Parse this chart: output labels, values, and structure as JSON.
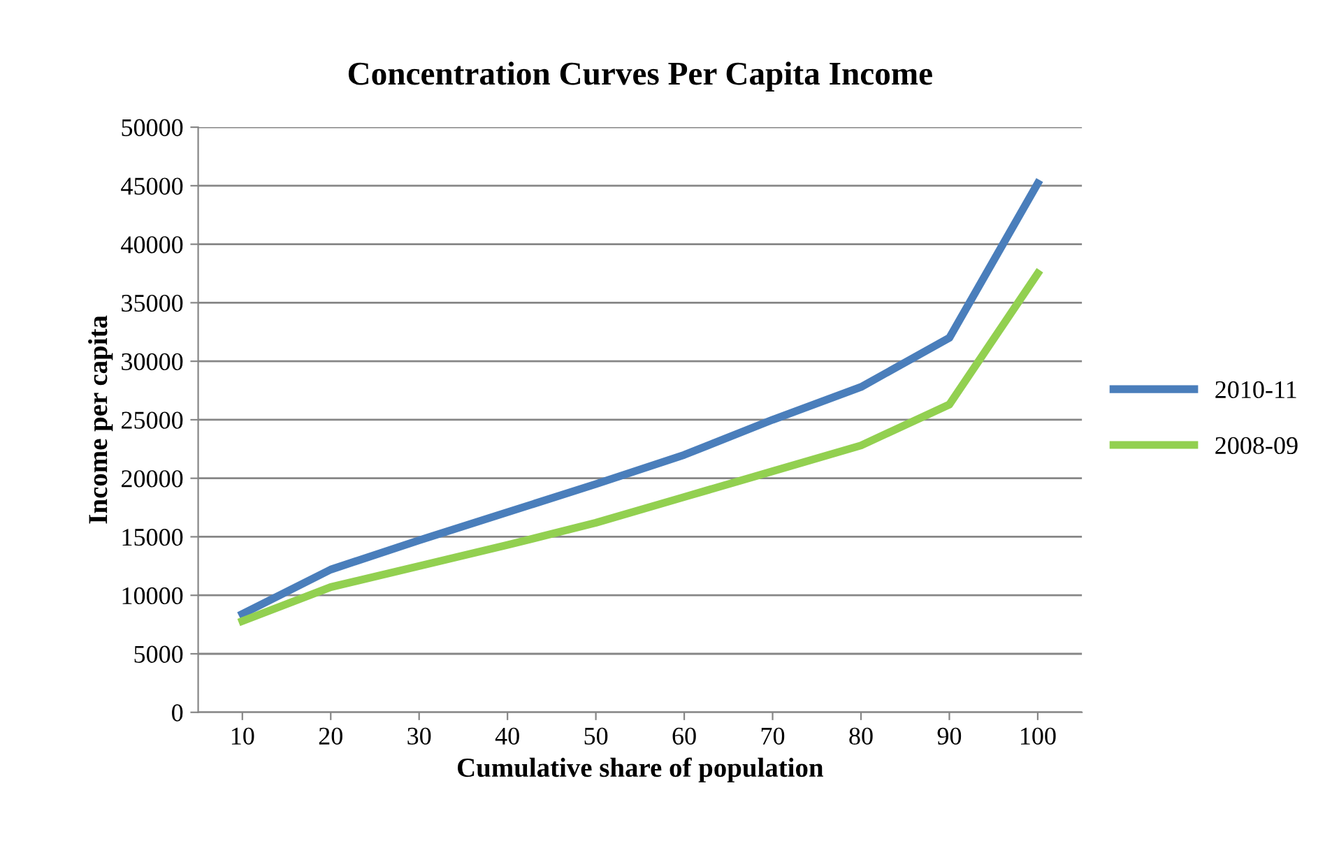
{
  "chart_data": {
    "type": "line",
    "title": "Concentration Curves Per Capita Income",
    "xlabel": "Cumulative share of population",
    "ylabel": "Income per capita",
    "categories": [
      "10",
      "20",
      "30",
      "40",
      "50",
      "60",
      "70",
      "80",
      "90",
      "100"
    ],
    "series": [
      {
        "name": "2010-11",
        "color": "#4a7ebb",
        "values": [
          8400,
          12200,
          14700,
          17100,
          19500,
          22000,
          25000,
          27800,
          32000,
          45200
        ]
      },
      {
        "name": "2008-09",
        "color": "#92d050",
        "values": [
          7800,
          10700,
          12500,
          14300,
          16200,
          18400,
          20600,
          22800,
          26300,
          37500
        ]
      }
    ],
    "ylim": [
      0,
      50000
    ],
    "yticks": [
      0,
      5000,
      10000,
      15000,
      20000,
      25000,
      30000,
      35000,
      40000,
      45000,
      50000
    ],
    "grid": "y",
    "legend": "right",
    "marker": "none",
    "line_style": "solid"
  }
}
